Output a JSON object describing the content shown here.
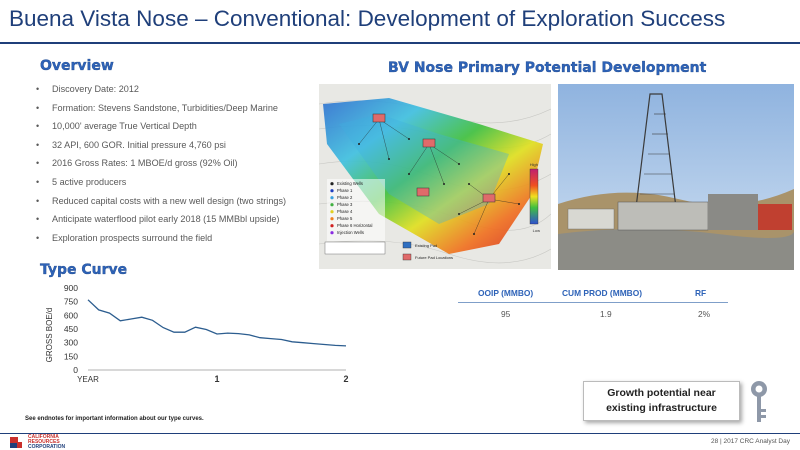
{
  "header": {
    "title": "Buena Vista Nose – Conventional: Development of Exploration Success"
  },
  "overview": {
    "heading": "Overview",
    "bullets": [
      "Discovery Date: 2012",
      "Formation: Stevens Sandstone, Turbidities/Deep Marine",
      "10,000' average True Vertical Depth",
      "32 API, 600 GOR. Initial pressure 4,760 psi",
      "2016 Gross Rates: 1 MBOE/d gross (92% Oil)",
      "5 active producers",
      "Reduced capital costs with a new well design (two strings)",
      "Anticipate waterflood pilot early 2018 (15 MMBbl upside)",
      "Exploration prospects surround the field"
    ]
  },
  "development": {
    "heading": "BV Nose Primary Potential Development",
    "map_legend": [
      "Existing Wells",
      "Phase 1",
      "Phase 2",
      "Phase 3",
      "Phase 4",
      "Phase 5",
      "Phase 6 Horizontal",
      "Injection Wells"
    ],
    "map_legend_colors": [
      "#222222",
      "#1f3fbf",
      "#3aa0e0",
      "#40b040",
      "#e0d020",
      "#f08020",
      "#d02020",
      "#8a2be2"
    ],
    "map_scale_labels": {
      "high": "High",
      "low": "Low"
    },
    "map_pad_legend": [
      "Existing Pad",
      "Future Pad Locations"
    ]
  },
  "type_curve": {
    "heading": "Type Curve",
    "chart_data": {
      "type": "line",
      "ylabel": "GROSS BOE/d",
      "xlabel": "",
      "x_ticks": [
        "YEAR",
        "1",
        "2"
      ],
      "y_ticks": [
        0,
        150,
        300,
        450,
        600,
        750,
        900
      ],
      "xlim": [
        0,
        2
      ],
      "ylim": [
        0,
        900
      ],
      "grid": false,
      "series": [
        {
          "color": "#2c5d8f",
          "x": [
            0,
            0.083,
            0.167,
            0.25,
            0.333,
            0.417,
            0.5,
            0.583,
            0.667,
            0.75,
            0.833,
            0.917,
            1.0,
            1.083,
            1.167,
            1.25,
            1.333,
            1.417,
            1.5,
            1.583,
            1.667,
            1.75,
            1.833,
            1.917,
            2.0
          ],
          "y": [
            770,
            660,
            625,
            540,
            560,
            580,
            545,
            465,
            415,
            415,
            470,
            445,
            395,
            405,
            400,
            385,
            355,
            345,
            335,
            310,
            300,
            290,
            280,
            270,
            265
          ]
        }
      ]
    }
  },
  "reserves_table": {
    "headers": [
      "OOIP (MMBO)",
      "CUM PROD (MMBO)",
      "RF"
    ],
    "values": [
      "95",
      "1.9",
      "2%"
    ]
  },
  "callout": {
    "line1": "Growth potential near",
    "line2": "existing infrastructure"
  },
  "endnote": "See endnotes for important information about our type curves.",
  "logo": {
    "line1": "CALIFORNIA",
    "line2": "RESOURCES",
    "line3": "CORPORATION"
  },
  "footer": {
    "page": "28 | 2017 CRC Analyst Day"
  },
  "colors": {
    "title": "#1f3f7a",
    "accent": "#2e63b8"
  }
}
